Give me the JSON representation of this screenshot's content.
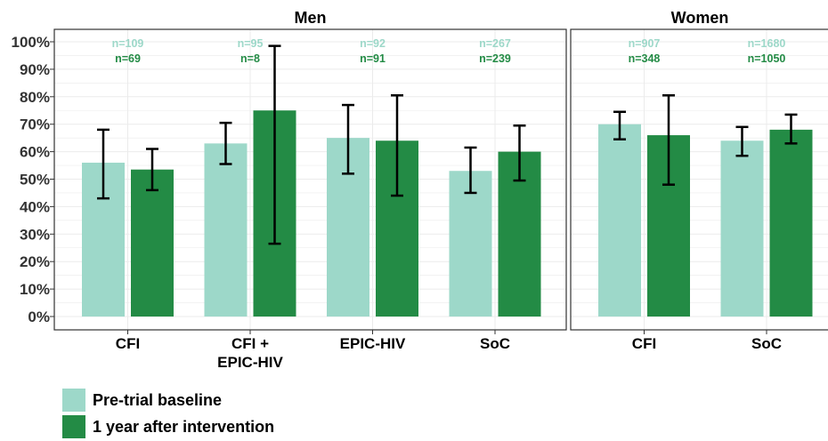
{
  "colors": {
    "baseline": "#9dd8c9",
    "after": "#238b45"
  },
  "chart_data": {
    "type": "bar",
    "ylim": [
      0,
      100
    ],
    "yticks": [
      "0%",
      "10%",
      "20%",
      "30%",
      "40%",
      "50%",
      "60%",
      "70%",
      "80%",
      "90%",
      "100%"
    ],
    "series_names": [
      "Pre-trial baseline",
      "1 year after intervention"
    ],
    "legend_position": "bottom-left",
    "grid": true,
    "panels": [
      {
        "title": "Men",
        "groups": [
          {
            "label": "CFI",
            "bars": [
              {
                "value": 56,
                "ci": [
                  43,
                  68
                ],
                "n": "n=109"
              },
              {
                "value": 53.5,
                "ci": [
                  46,
                  61
                ],
                "n": "n=69"
              }
            ]
          },
          {
            "label": "CFI +\nEPIC-HIV",
            "bars": [
              {
                "value": 63,
                "ci": [
                  55.5,
                  70.5
                ],
                "n": "n=95"
              },
              {
                "value": 75,
                "ci": [
                  26.5,
                  98.5
                ],
                "n": "n=8"
              }
            ]
          },
          {
            "label": "EPIC-HIV",
            "bars": [
              {
                "value": 65,
                "ci": [
                  52,
                  77
                ],
                "n": "n=92"
              },
              {
                "value": 64,
                "ci": [
                  44,
                  80.5
                ],
                "n": "n=91"
              }
            ]
          },
          {
            "label": "SoC",
            "bars": [
              {
                "value": 53,
                "ci": [
                  45,
                  61.5
                ],
                "n": "n=267"
              },
              {
                "value": 60,
                "ci": [
                  49.5,
                  69.5
                ],
                "n": "n=239"
              }
            ]
          }
        ]
      },
      {
        "title": "Women",
        "groups": [
          {
            "label": "CFI",
            "bars": [
              {
                "value": 70,
                "ci": [
                  64.5,
                  74.5
                ],
                "n": "n=907"
              },
              {
                "value": 66,
                "ci": [
                  48,
                  80.5
                ],
                "n": "n=348"
              }
            ]
          },
          {
            "label": "SoC",
            "bars": [
              {
                "value": 64,
                "ci": [
                  58.5,
                  69
                ],
                "n": "n=1680"
              },
              {
                "value": 68,
                "ci": [
                  63,
                  73.5
                ],
                "n": "n=1050"
              }
            ]
          }
        ]
      }
    ]
  }
}
